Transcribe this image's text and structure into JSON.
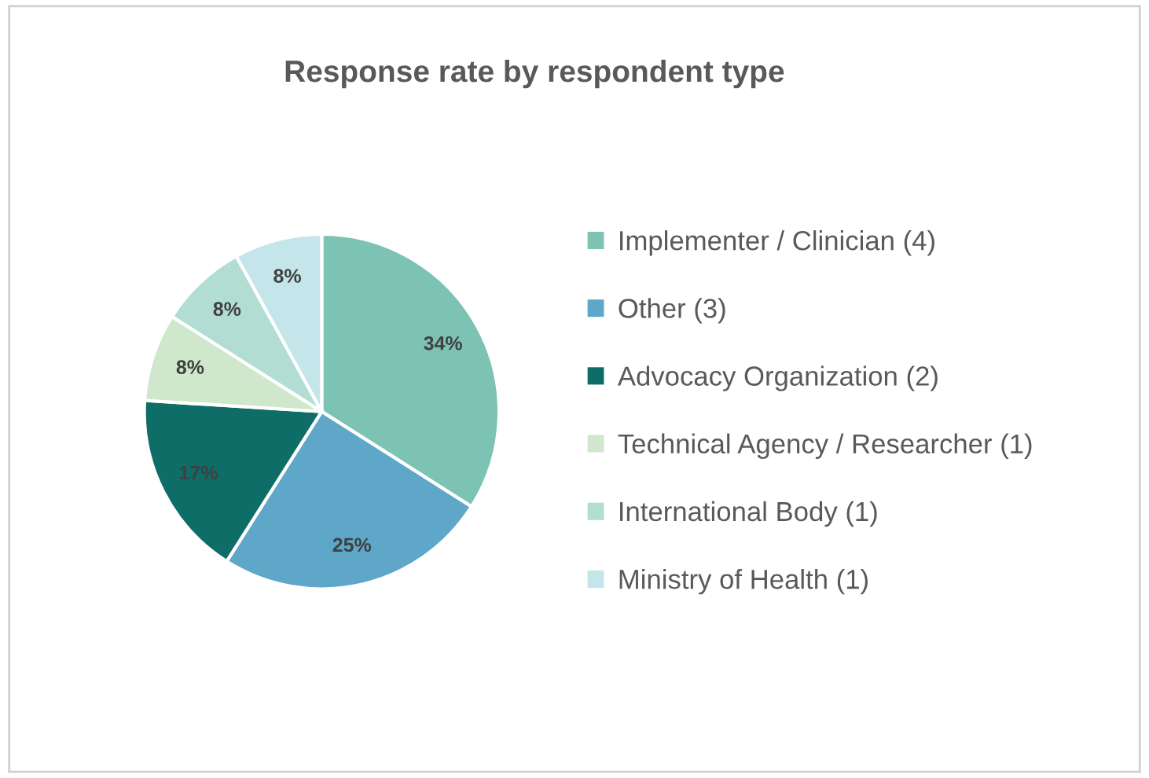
{
  "chart_data": {
    "type": "pie",
    "title": "Response rate by respondent type",
    "categories": [
      "Implementer / Clinician (4)",
      "Other (3)",
      "Advocacy Organization (2)",
      "Technical Agency / Researcher (1)",
      "International Body (1)",
      "Ministry of Health (1)"
    ],
    "values": [
      34,
      25,
      17,
      8,
      8,
      8
    ],
    "colors": [
      "#7cc3b4",
      "#5ea7c8",
      "#0f6d67",
      "#cfe8cb",
      "#b2ddd3",
      "#c4e5ea"
    ],
    "value_labels": [
      "34%",
      "25%",
      "17%",
      "8%",
      "8%",
      "8%"
    ],
    "legend": "right"
  }
}
